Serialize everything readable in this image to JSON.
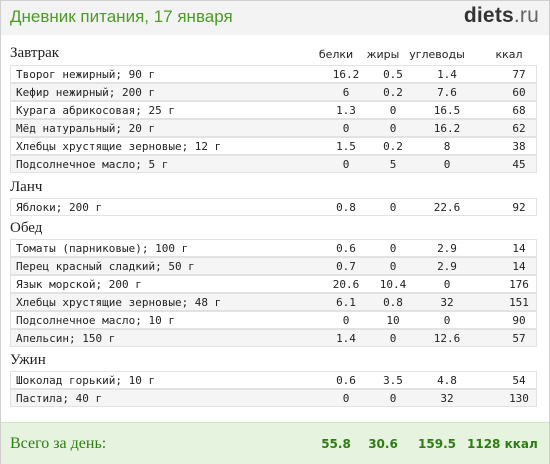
{
  "header": {
    "title": "Дневник питания, 17 января",
    "logo_main": "diets",
    "logo_tld": ".ru"
  },
  "columns": {
    "protein": "белки",
    "fat": "жиры",
    "carbs": "углеводы",
    "kcal": "ккал"
  },
  "meals": [
    {
      "title": "Завтрак",
      "rows": [
        {
          "name": "Творог нежирный; 90 г",
          "p": "16.2",
          "f": "0.5",
          "c": "1.4",
          "k": "77"
        },
        {
          "name": "Кефир нежирный; 200 г",
          "p": "6",
          "f": "0.2",
          "c": "7.6",
          "k": "60"
        },
        {
          "name": "Курага абрикосовая; 25 г",
          "p": "1.3",
          "f": "0",
          "c": "16.5",
          "k": "68"
        },
        {
          "name": "Мёд натуральный; 20 г",
          "p": "0",
          "f": "0",
          "c": "16.2",
          "k": "62"
        },
        {
          "name": "Хлебцы хрустящие зерновые; 12 г",
          "p": "1.5",
          "f": "0.2",
          "c": "8",
          "k": "38"
        },
        {
          "name": "Подсолнечное масло; 5 г",
          "p": "0",
          "f": "5",
          "c": "0",
          "k": "45"
        }
      ]
    },
    {
      "title": "Ланч",
      "rows": [
        {
          "name": "Яблоки; 200 г",
          "p": "0.8",
          "f": "0",
          "c": "22.6",
          "k": "92"
        }
      ]
    },
    {
      "title": "Обед",
      "rows": [
        {
          "name": "Томаты (парниковые); 100 г",
          "p": "0.6",
          "f": "0",
          "c": "2.9",
          "k": "14"
        },
        {
          "name": "Перец красный сладкий; 50 г",
          "p": "0.7",
          "f": "0",
          "c": "2.9",
          "k": "14"
        },
        {
          "name": "Язык морской; 200 г",
          "p": "20.6",
          "f": "10.4",
          "c": "0",
          "k": "176"
        },
        {
          "name": "Хлебцы хрустящие зерновые; 48 г",
          "p": "6.1",
          "f": "0.8",
          "c": "32",
          "k": "151"
        },
        {
          "name": "Подсолнечное масло; 10 г",
          "p": "0",
          "f": "10",
          "c": "0",
          "k": "90"
        },
        {
          "name": "Апельсин; 150 г",
          "p": "1.4",
          "f": "0",
          "c": "12.6",
          "k": "57"
        }
      ]
    },
    {
      "title": "Ужин",
      "rows": [
        {
          "name": "Шоколад горький; 10 г",
          "p": "0.6",
          "f": "3.5",
          "c": "4.8",
          "k": "54"
        },
        {
          "name": "Пастила; 40 г",
          "p": "0",
          "f": "0",
          "c": "32",
          "k": "130"
        }
      ]
    }
  ],
  "footer": {
    "label": "Всего за день:",
    "protein": "55.8",
    "fat": "30.6",
    "carbs": "159.5",
    "kcal": "1128 ккал"
  }
}
